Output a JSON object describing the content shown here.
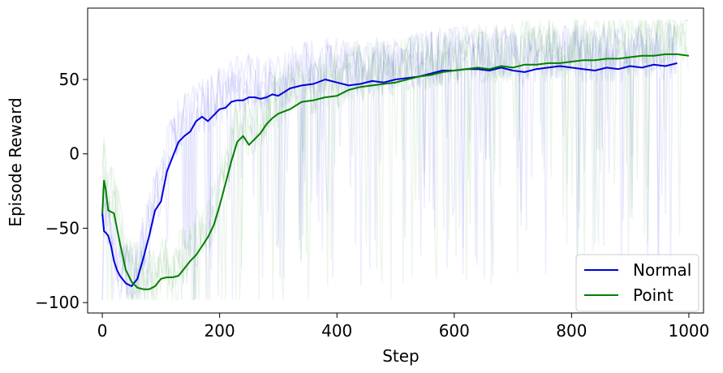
{
  "chart_data": {
    "type": "line",
    "title": "",
    "xlabel": "Step",
    "ylabel": "Episode Reward",
    "xlim": [
      -25,
      1025
    ],
    "ylim": [
      -107,
      98
    ],
    "xticks": [
      0,
      200,
      400,
      600,
      800,
      1000
    ],
    "xtick_labels": [
      "0",
      "200",
      "400",
      "600",
      "800",
      "1000"
    ],
    "yticks": [
      -100,
      -50,
      0,
      50
    ],
    "ytick_labels": [
      "−100",
      "−50",
      "0",
      "50"
    ],
    "grid": false,
    "legend_position": "bottom-right",
    "series": [
      {
        "name": "Normal",
        "color": "#0000dd",
        "x": [
          0,
          3,
          6,
          10,
          15,
          20,
          25,
          30,
          40,
          50,
          60,
          70,
          80,
          90,
          100,
          110,
          120,
          130,
          140,
          150,
          160,
          170,
          180,
          190,
          200,
          210,
          220,
          230,
          240,
          250,
          260,
          270,
          280,
          290,
          300,
          320,
          340,
          360,
          380,
          400,
          420,
          440,
          460,
          480,
          500,
          520,
          540,
          560,
          580,
          600,
          620,
          640,
          660,
          680,
          700,
          720,
          740,
          760,
          780,
          800,
          820,
          840,
          860,
          880,
          900,
          920,
          940,
          960,
          980
        ],
        "y": [
          -40,
          -52,
          -53,
          -55,
          -62,
          -72,
          -78,
          -82,
          -87,
          -89,
          -84,
          -70,
          -55,
          -38,
          -32,
          -12,
          -2,
          8,
          12,
          15,
          22,
          25,
          22,
          26,
          30,
          31,
          35,
          36,
          36,
          38,
          38,
          37,
          38,
          40,
          39,
          44,
          46,
          47,
          50,
          48,
          46,
          47,
          49,
          48,
          50,
          51,
          52,
          54,
          56,
          56,
          57,
          57,
          56,
          58,
          56,
          55,
          57,
          58,
          59,
          58,
          57,
          56,
          58,
          57,
          59,
          58,
          60,
          59,
          61
        ]
      },
      {
        "name": "Point",
        "color": "#008000",
        "x": [
          0,
          3,
          6,
          10,
          20,
          30,
          40,
          50,
          60,
          70,
          80,
          90,
          100,
          110,
          120,
          130,
          140,
          150,
          160,
          170,
          180,
          190,
          200,
          210,
          220,
          230,
          240,
          250,
          260,
          270,
          280,
          290,
          300,
          320,
          340,
          360,
          380,
          400,
          420,
          440,
          460,
          480,
          500,
          520,
          540,
          560,
          580,
          600,
          620,
          640,
          660,
          680,
          700,
          720,
          740,
          760,
          780,
          800,
          820,
          840,
          860,
          880,
          900,
          920,
          940,
          960,
          980,
          1000
        ],
        "y": [
          -40,
          -18,
          -24,
          -38,
          -40,
          -60,
          -78,
          -86,
          -90,
          -91,
          -91,
          -89,
          -84,
          -83,
          -83,
          -82,
          -77,
          -72,
          -68,
          -62,
          -56,
          -48,
          -35,
          -20,
          -5,
          8,
          12,
          6,
          10,
          14,
          20,
          24,
          27,
          30,
          35,
          36,
          38,
          39,
          43,
          45,
          46,
          47,
          48,
          50,
          52,
          53,
          55,
          56,
          57,
          58,
          57,
          59,
          58,
          60,
          60,
          61,
          61,
          62,
          63,
          63,
          64,
          64,
          65,
          66,
          66,
          67,
          67,
          66
        ]
      }
    ]
  }
}
